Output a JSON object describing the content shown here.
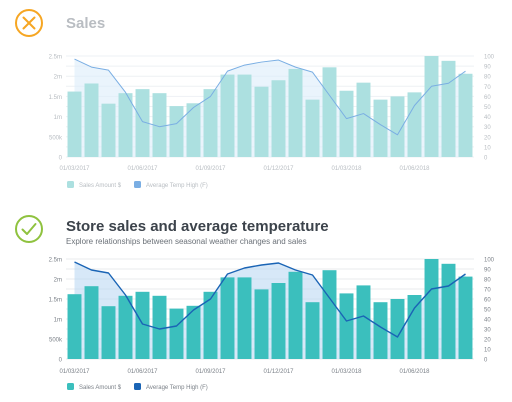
{
  "panels": [
    {
      "status": "bad",
      "title": "Sales",
      "subtitle": "",
      "colors": {
        "bar": "#ace0e0",
        "line": "#7aaee3",
        "area": "#dcecfa",
        "text": "#b8bdc2",
        "grid": "#eef1f4",
        "badge": "#f6a623"
      }
    },
    {
      "status": "good",
      "title": "Store sales and average temperature",
      "subtitle": "Explore relationships between seasonal weather changes and sales",
      "colors": {
        "bar": "#3bbfbd",
        "line": "#1a64b5",
        "area": "#bcd9f3",
        "text": "#7b8188",
        "grid": "#e8ebee",
        "badge": "#8fc23f"
      }
    }
  ],
  "chart_data": [
    {
      "type": "bar",
      "title": "Sales",
      "categories": [
        "01/03/2017",
        "",
        "",
        "",
        "01/06/2017",
        "",
        "",
        "",
        "01/09/2017",
        "",
        "",
        "",
        "01/12/2017",
        "",
        "",
        "",
        "01/03/2018",
        "",
        "",
        "",
        "01/06/2018",
        "",
        "",
        ""
      ],
      "x_tick_labels": [
        "01/03/2017",
        "01/06/2017",
        "01/09/2017",
        "01/12/2017",
        "01/03/2018",
        "01/06/2018"
      ],
      "series": [
        {
          "name": "Sales Amount $",
          "axis": "left",
          "values": [
            1620000,
            1820000,
            1320000,
            1580000,
            1680000,
            1580000,
            1260000,
            1330000,
            1680000,
            2040000,
            2040000,
            1740000,
            1900000,
            2180000,
            1420000,
            2220000,
            1640000,
            1840000,
            1420000,
            1500000,
            1600000,
            2500000,
            2380000,
            2060000
          ]
        },
        {
          "name": "Average Temp High (F)",
          "axis": "right",
          "type": "line",
          "values": [
            97,
            89,
            86,
            64,
            35,
            30,
            33,
            49,
            60,
            85,
            91,
            94,
            96,
            89,
            84,
            61,
            38,
            43,
            32,
            22,
            51,
            70,
            73,
            85
          ]
        }
      ],
      "y_left": {
        "ticks": [
          "0",
          "500k",
          "1m",
          "1.5m",
          "2m",
          "2.5m"
        ],
        "ylim": [
          0,
          2500000
        ]
      },
      "y_right": {
        "ticks": [
          "0",
          "10",
          "20",
          "30",
          "40",
          "50",
          "60",
          "70",
          "80",
          "90",
          "100"
        ],
        "ylim": [
          0,
          100
        ]
      },
      "grid": true,
      "legend": "bottom-left"
    },
    {
      "type": "bar",
      "title": "Store sales and average temperature",
      "subtitle": "Explore relationships between seasonal weather changes and sales",
      "categories": [
        "01/03/2017",
        "",
        "",
        "",
        "01/06/2017",
        "",
        "",
        "",
        "01/09/2017",
        "",
        "",
        "",
        "01/12/2017",
        "",
        "",
        "",
        "01/03/2018",
        "",
        "",
        "",
        "01/06/2018",
        "",
        "",
        ""
      ],
      "x_tick_labels": [
        "01/03/2017",
        "01/06/2017",
        "01/09/2017",
        "01/12/2017",
        "01/03/2018",
        "01/06/2018"
      ],
      "series": [
        {
          "name": "Sales Amount $",
          "axis": "left",
          "values": [
            1620000,
            1820000,
            1320000,
            1580000,
            1680000,
            1580000,
            1260000,
            1330000,
            1680000,
            2040000,
            2040000,
            1740000,
            1900000,
            2180000,
            1420000,
            2220000,
            1640000,
            1840000,
            1420000,
            1500000,
            1600000,
            2500000,
            2380000,
            2060000
          ]
        },
        {
          "name": "Average Temp High (F)",
          "axis": "right",
          "type": "line",
          "values": [
            97,
            89,
            86,
            64,
            35,
            30,
            33,
            49,
            60,
            85,
            91,
            94,
            96,
            89,
            84,
            61,
            38,
            43,
            32,
            22,
            51,
            70,
            73,
            85
          ]
        }
      ],
      "y_left": {
        "ticks": [
          "0",
          "500k",
          "1m",
          "1.5m",
          "2m",
          "2.5m"
        ],
        "ylim": [
          0,
          2500000
        ]
      },
      "y_right": {
        "ticks": [
          "0",
          "10",
          "20",
          "30",
          "40",
          "50",
          "60",
          "70",
          "80",
          "90",
          "100"
        ],
        "ylim": [
          0,
          100
        ]
      },
      "grid": true,
      "legend": "bottom-left"
    }
  ]
}
